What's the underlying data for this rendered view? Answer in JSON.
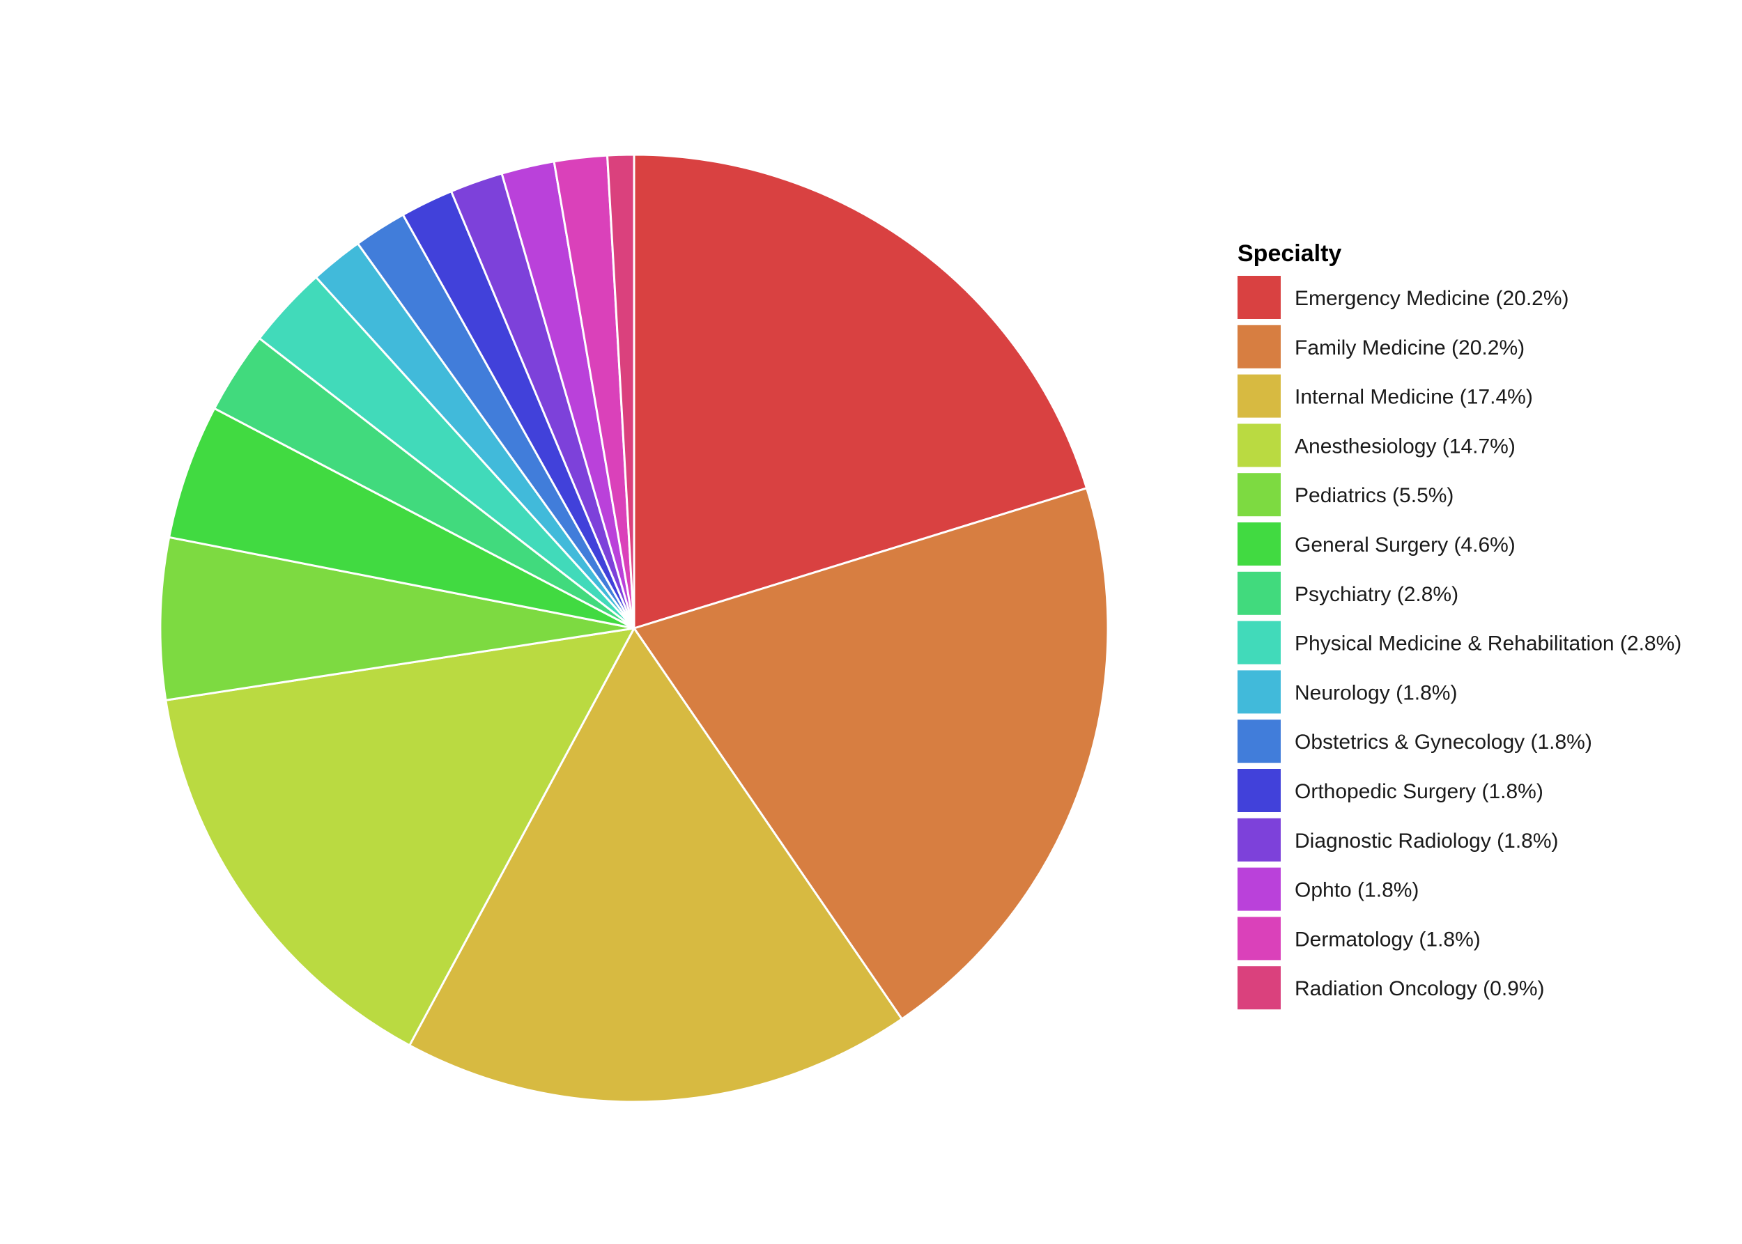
{
  "chart_data": {
    "type": "pie",
    "title": "",
    "legend": {
      "title": "Specialty",
      "position": "right"
    },
    "start": "top, clockwise",
    "slice_border_color": "#ffffff",
    "slices": [
      {
        "name": "Emergency Medicine",
        "value": 20.2,
        "label": "Emergency Medicine (20.2%)",
        "color": "#D94141"
      },
      {
        "name": "Family Medicine",
        "value": 20.2,
        "label": "Family Medicine (20.2%)",
        "color": "#D77E41"
      },
      {
        "name": "Internal Medicine",
        "value": 17.4,
        "label": "Internal Medicine (17.4%)",
        "color": "#D7BA41"
      },
      {
        "name": "Anesthesiology",
        "value": 14.7,
        "label": "Anesthesiology (14.7%)",
        "color": "#BADA41"
      },
      {
        "name": "Pediatrics",
        "value": 5.5,
        "label": "Pediatrics (5.5%)",
        "color": "#7DDA41"
      },
      {
        "name": "General Surgery",
        "value": 4.6,
        "label": "General Surgery (4.6%)",
        "color": "#41DA41"
      },
      {
        "name": "Psychiatry",
        "value": 2.8,
        "label": "Psychiatry (2.8%)",
        "color": "#41DA7D"
      },
      {
        "name": "Physical Medicine & Rehabilitation",
        "value": 2.8,
        "label": "Physical Medicine & Rehabilitation (2.8%)",
        "color": "#41DABA"
      },
      {
        "name": "Neurology",
        "value": 1.8,
        "label": "Neurology (1.8%)",
        "color": "#41BADA"
      },
      {
        "name": "Obstetrics & Gynecology",
        "value": 1.8,
        "label": "Obstetrics & Gynecology (1.8%)",
        "color": "#417DDA"
      },
      {
        "name": "Orthopedic Surgery",
        "value": 1.8,
        "label": "Orthopedic Surgery (1.8%)",
        "color": "#4141DA"
      },
      {
        "name": "Diagnostic Radiology",
        "value": 1.8,
        "label": "Diagnostic Radiology (1.8%)",
        "color": "#7D41DA"
      },
      {
        "name": "Ophto",
        "value": 1.8,
        "label": "Ophto (1.8%)",
        "color": "#BA41DA"
      },
      {
        "name": "Dermatology",
        "value": 1.8,
        "label": "Dermatology (1.8%)",
        "color": "#DA41BA"
      },
      {
        "name": "Radiation Oncology",
        "value": 0.9,
        "label": "Radiation Oncology (0.9%)",
        "color": "#DA417D"
      }
    ]
  }
}
